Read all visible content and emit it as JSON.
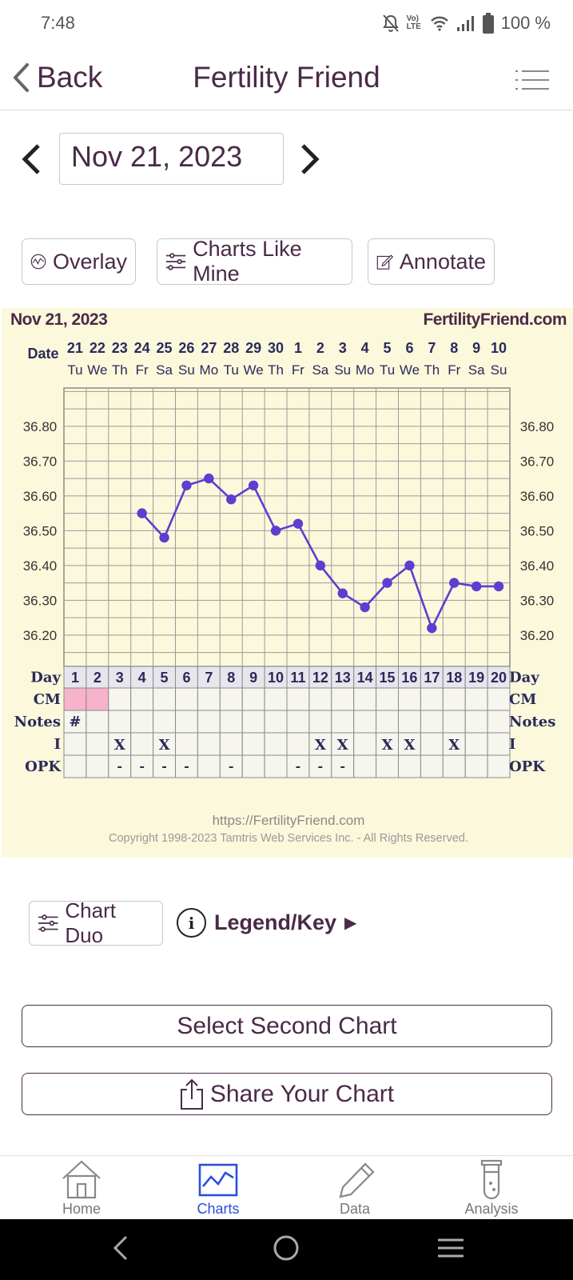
{
  "status_bar": {
    "time": "7:48",
    "battery": "100 %",
    "network": "Vo) LTE"
  },
  "header": {
    "back_label": "Back",
    "title": "Fertility Friend"
  },
  "date_nav": {
    "date": "Nov 21, 2023"
  },
  "toolbar": {
    "overlay_label": "Overlay",
    "charts_like_mine_label": "Charts Like Mine",
    "annotate_label": "Annotate"
  },
  "chart": {
    "header_date": "Nov 21, 2023",
    "header_site": "FertilityFriend.com",
    "footer_url": "https://FertilityFriend.com",
    "footer_copyright": "Copyright 1998-2023 Tamtris Web Services Inc. - All Rights Reserved.",
    "row_labels": {
      "date": "Date",
      "day": "Day",
      "cm": "CM",
      "notes": "Notes",
      "i": "I",
      "opk": "OPK"
    },
    "temp_labels": [
      "36.80",
      "36.70",
      "36.60",
      "36.50",
      "36.40",
      "36.30",
      "36.20"
    ]
  },
  "chart_data": {
    "type": "line",
    "title": "Nov 21, 2023",
    "x_dates": [
      "21",
      "22",
      "23",
      "24",
      "25",
      "26",
      "27",
      "28",
      "29",
      "30",
      "1",
      "2",
      "3",
      "4",
      "5",
      "6",
      "7",
      "8",
      "9",
      "10"
    ],
    "x_weekdays": [
      "Tu",
      "We",
      "Th",
      "Fr",
      "Sa",
      "Su",
      "Mo",
      "Tu",
      "We",
      "Th",
      "Fr",
      "Sa",
      "Su",
      "Mo",
      "Tu",
      "We",
      "Th",
      "Fr",
      "Sa",
      "Su"
    ],
    "cycle_days": [
      "1",
      "2",
      "3",
      "4",
      "5",
      "6",
      "7",
      "8",
      "9",
      "10",
      "11",
      "12",
      "13",
      "14",
      "15",
      "16",
      "17",
      "18",
      "19",
      "20"
    ],
    "series": [
      {
        "values": [
          null,
          null,
          null,
          36.55,
          36.48,
          36.63,
          36.65,
          36.59,
          36.63,
          36.5,
          36.52,
          36.4,
          36.32,
          36.28,
          36.35,
          36.4,
          36.22,
          36.35,
          36.34,
          36.34
        ]
      }
    ],
    "ylim": [
      36.11,
      36.91
    ],
    "y_ticks": [
      36.8,
      36.7,
      36.6,
      36.5,
      36.4,
      36.3,
      36.2
    ],
    "grid": true,
    "cm_marked_days": [
      1,
      2
    ],
    "notes_marks": [
      "#",
      "",
      "",
      "",
      "",
      "",
      "",
      "",
      "",
      "",
      "",
      "",
      "",
      "",
      "",
      "",
      "",
      "",
      "",
      ""
    ],
    "i_marks": [
      "",
      "",
      "X",
      "",
      "X",
      "",
      "",
      "",
      "",
      "",
      "",
      "X",
      "X",
      "",
      "X",
      "X",
      "",
      "X",
      "",
      ""
    ],
    "opk_marks": [
      "",
      "",
      "-",
      "-",
      "-",
      "-",
      "",
      "-",
      "",
      "",
      "-",
      "-",
      "-",
      "",
      "",
      "",
      "",
      "",
      "",
      ""
    ],
    "colors": {
      "line": "#5b3fd0",
      "background": "#fcf8dc",
      "cm_highlight": "#f7b3cb"
    }
  },
  "actions": {
    "chart_duo_label": "Chart Duo",
    "legend_label": "Legend/Key",
    "legend_arrow": "▶",
    "select_second_label": "Select Second Chart",
    "share_label": "Share Your Chart"
  },
  "bottom_nav": {
    "items": [
      {
        "label": "Home",
        "icon": "home-icon"
      },
      {
        "label": "Charts",
        "icon": "charts-icon"
      },
      {
        "label": "Data",
        "icon": "pencil-icon"
      },
      {
        "label": "Analysis",
        "icon": "test-tube-icon"
      }
    ],
    "active": "Charts",
    "active_color": "#2b4fd8"
  }
}
